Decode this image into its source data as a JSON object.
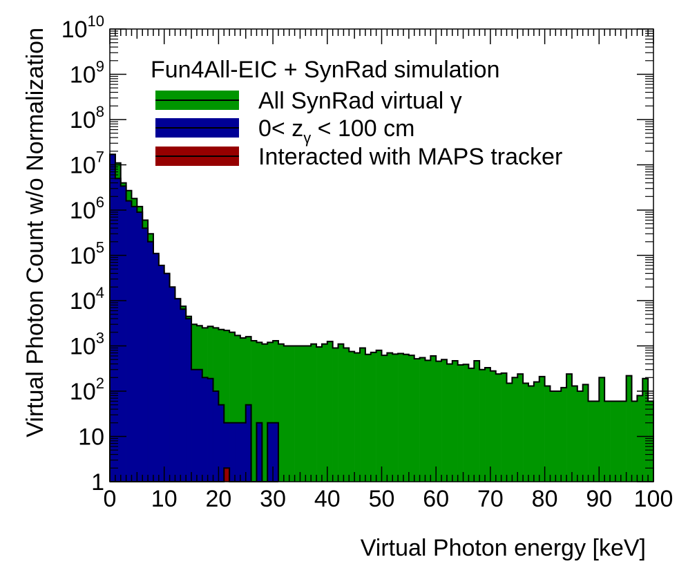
{
  "chart_data": {
    "type": "histogram",
    "title": "",
    "xlabel": "Virtual Photon energy [keV]",
    "ylabel": "Virtual Photon Count w/o Normalization",
    "xlim": [
      0,
      100
    ],
    "ylim": [
      1,
      10000000000
    ],
    "yscale": "log",
    "bin_width": 1,
    "grid": false,
    "legend_position": "top-center",
    "annotation": "Fun4All-EIC + SynRad simulation",
    "x_ticks": [
      "0",
      "10",
      "20",
      "30",
      "40",
      "50",
      "60",
      "70",
      "80",
      "90",
      "100"
    ],
    "y_ticks": [
      {
        "base": "1",
        "exp": ""
      },
      {
        "base": "10",
        "exp": ""
      },
      {
        "base": "10",
        "exp": "2"
      },
      {
        "base": "10",
        "exp": "3"
      },
      {
        "base": "10",
        "exp": "4"
      },
      {
        "base": "10",
        "exp": "5"
      },
      {
        "base": "10",
        "exp": "6"
      },
      {
        "base": "10",
        "exp": "7"
      },
      {
        "base": "10",
        "exp": "8"
      },
      {
        "base": "10",
        "exp": "9"
      },
      {
        "base": "10",
        "exp": "10"
      }
    ],
    "series": [
      {
        "name": "All SynRad virtual  γ",
        "legend_main": "All SynRad virtual  γ",
        "legend_sub": "",
        "legend_tail": "",
        "color": "#009600",
        "values": [
          17000000,
          11000000,
          4000000,
          2700000,
          1800000,
          1200000,
          600000,
          300000,
          100000,
          45000,
          38000,
          17000,
          11000,
          7500,
          4500,
          3000,
          2800,
          2500,
          2700,
          2500,
          2300,
          2200,
          2000,
          1700,
          1500,
          1600,
          1300,
          1200,
          1100,
          1200,
          1300,
          1100,
          1000,
          1000,
          1000,
          1000,
          1000,
          1100,
          950,
          1100,
          1250,
          900,
          1100,
          900,
          750,
          700,
          900,
          650,
          720,
          800,
          620,
          700,
          660,
          680,
          650,
          620,
          520,
          550,
          480,
          600,
          460,
          500,
          400,
          470,
          380,
          390,
          320,
          470,
          300,
          330,
          280,
          240,
          250,
          150,
          200,
          240,
          150,
          130,
          160,
          210,
          130,
          100,
          100,
          120,
          240,
          130,
          100,
          140,
          60,
          60,
          200,
          60,
          60,
          60,
          60,
          220,
          60,
          80,
          190,
          60
        ]
      },
      {
        "name": "0< zγ < 100 cm",
        "legend_main": "0< z",
        "legend_sub": "γ",
        "legend_tail": " < 100 cm",
        "color": "#000096",
        "values": [
          17000000,
          5000000,
          3400000,
          1600000,
          1200000,
          900000,
          400000,
          200000,
          110000,
          60000,
          40000,
          20000,
          11000,
          6500,
          4000,
          300,
          300,
          200,
          190,
          100,
          50,
          20,
          20,
          20,
          20,
          50,
          0,
          20,
          0,
          20,
          20
        ]
      },
      {
        "name": "Interacted with MAPS tracker",
        "legend_main": "Interacted with MAPS tracker",
        "legend_sub": "",
        "legend_tail": "",
        "color": "#960000",
        "values": [
          0,
          0,
          0,
          0,
          0,
          0,
          0,
          0,
          0,
          0,
          0,
          0,
          0,
          0,
          0,
          0,
          0,
          0,
          0,
          0,
          0,
          2,
          0,
          0,
          0,
          0,
          0,
          0,
          0,
          0,
          0
        ]
      }
    ]
  }
}
